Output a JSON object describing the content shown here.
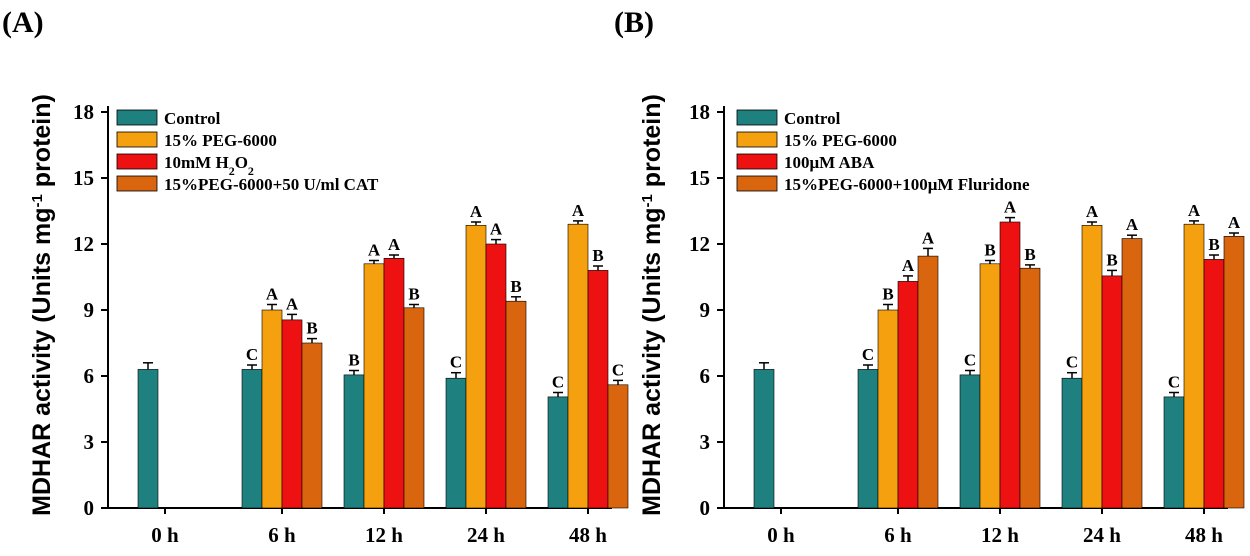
{
  "chart_data": [
    {
      "type": "bar",
      "panel_label": "(A)",
      "ylabel_main": "MDHAR activity (Units mg",
      "ylabel_sup": "-1",
      "ylabel_end": " protein)",
      "ylim": [
        0,
        18
      ],
      "yticks": [
        0,
        3,
        6,
        9,
        12,
        15,
        18
      ],
      "categories": [
        "0 h",
        "6 h",
        "12 h",
        "24 h",
        "48 h"
      ],
      "colors": [
        "#1f8080",
        "#f5a00f",
        "#ee1111",
        "#d9650f"
      ],
      "legend": [
        {
          "text": "Control"
        },
        {
          "text": "15% PEG-6000"
        },
        {
          "text": "10mM H",
          "sub": "2",
          "mid": "O",
          "sub2": "2"
        },
        {
          "text": "15%PEG-6000+50 U/ml CAT"
        }
      ],
      "series": [
        {
          "name": "Control",
          "values": [
            6.3,
            6.3,
            6.05,
            5.9,
            5.05
          ],
          "errors": [
            0.3,
            0.2,
            0.2,
            0.25,
            0.2
          ],
          "letters": [
            "",
            "C",
            "B",
            "C",
            "C"
          ]
        },
        {
          "name": "15% PEG-6000",
          "values": [
            null,
            9.0,
            11.1,
            12.85,
            12.9
          ],
          "errors": [
            null,
            0.25,
            0.15,
            0.15,
            0.15
          ],
          "letters": [
            "",
            "A",
            "A",
            "A",
            "A"
          ]
        },
        {
          "name": "10mM H2O2",
          "values": [
            null,
            8.55,
            11.35,
            12.0,
            10.8
          ],
          "errors": [
            null,
            0.25,
            0.15,
            0.2,
            0.2
          ],
          "letters": [
            "",
            "A",
            "A",
            "A",
            "B"
          ]
        },
        {
          "name": "15%PEG-6000+50 U/ml CAT",
          "values": [
            null,
            7.5,
            9.1,
            9.4,
            5.6
          ],
          "errors": [
            null,
            0.2,
            0.15,
            0.2,
            0.2
          ],
          "letters": [
            "",
            "B",
            "B",
            "B",
            "C"
          ]
        }
      ]
    },
    {
      "type": "bar",
      "panel_label": "(B)",
      "ylabel_main": "MDHAR activity (Units mg",
      "ylabel_sup": "-1",
      "ylabel_end": " protein)",
      "ylim": [
        0,
        18
      ],
      "yticks": [
        0,
        3,
        6,
        9,
        12,
        15,
        18
      ],
      "categories": [
        "0 h",
        "6 h",
        "12 h",
        "24 h",
        "48 h"
      ],
      "colors": [
        "#1f8080",
        "#f5a00f",
        "#ee1111",
        "#d9650f"
      ],
      "legend": [
        {
          "text": "Control"
        },
        {
          "text": "15% PEG-6000"
        },
        {
          "text": "100μM ABA"
        },
        {
          "text": "15%PEG-6000+100μM Fluridone"
        }
      ],
      "series": [
        {
          "name": "Control",
          "values": [
            6.3,
            6.3,
            6.05,
            5.9,
            5.05
          ],
          "errors": [
            0.3,
            0.2,
            0.2,
            0.25,
            0.2
          ],
          "letters": [
            "",
            "C",
            "C",
            "C",
            "C"
          ]
        },
        {
          "name": "15% PEG-6000",
          "values": [
            null,
            9.0,
            11.1,
            12.85,
            12.9
          ],
          "errors": [
            null,
            0.25,
            0.15,
            0.15,
            0.15
          ],
          "letters": [
            "",
            "B",
            "B",
            "A",
            "A"
          ]
        },
        {
          "name": "100μM ABA",
          "values": [
            null,
            10.3,
            13.0,
            10.55,
            11.3
          ],
          "errors": [
            null,
            0.25,
            0.2,
            0.25,
            0.2
          ],
          "letters": [
            "",
            "A",
            "A",
            "B",
            "B"
          ]
        },
        {
          "name": "15%PEG-6000+100μM Fluridone",
          "values": [
            null,
            11.45,
            10.9,
            12.25,
            12.35
          ],
          "errors": [
            null,
            0.35,
            0.15,
            0.15,
            0.15
          ],
          "letters": [
            "",
            "A",
            "B",
            "A",
            "A"
          ]
        }
      ]
    }
  ]
}
